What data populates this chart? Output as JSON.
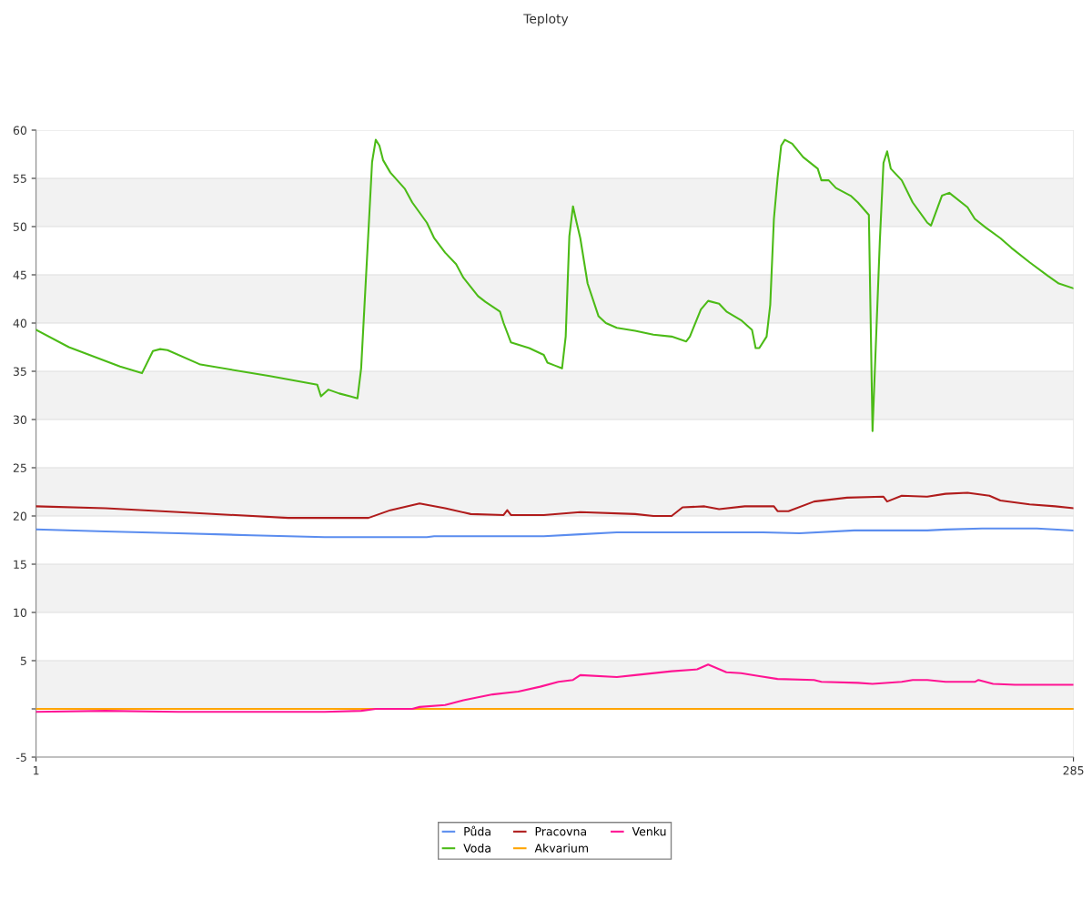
{
  "chart_data": {
    "type": "line",
    "title": "Teploty",
    "xlim": [
      1,
      285
    ],
    "xticks": [
      1,
      285
    ],
    "ylim": [
      -5,
      60
    ],
    "yticks": [
      -5,
      {
        "value": 0,
        "label": null
      },
      5,
      10,
      15,
      20,
      25,
      30,
      35,
      40,
      45,
      50,
      55,
      60
    ],
    "grid": true,
    "legend": "bottom",
    "marker": "none",
    "line_style": "solid",
    "bands": [
      {
        "axis": "y",
        "from": 0,
        "to": 5,
        "color": "#f2f2f2"
      },
      {
        "axis": "y",
        "from": 10,
        "to": 15,
        "color": "#f2f2f2"
      },
      {
        "axis": "y",
        "from": 20,
        "to": 25,
        "color": "#f2f2f2"
      },
      {
        "axis": "y",
        "from": 30,
        "to": 35,
        "color": "#f2f2f2"
      },
      {
        "axis": "y",
        "from": 40,
        "to": 45,
        "color": "#f2f2f2"
      },
      {
        "axis": "y",
        "from": 50,
        "to": 55,
        "color": "#f2f2f2"
      }
    ],
    "series": [
      {
        "name": "Půda",
        "color": "#5b8def",
        "x": [
          1,
          20,
          40,
          60,
          80,
          108,
          110,
          140,
          150,
          160,
          200,
          210,
          225,
          245,
          250,
          260,
          275,
          285
        ],
        "values": [
          18.6,
          18.4,
          18.2,
          18.0,
          17.8,
          17.8,
          17.9,
          17.9,
          18.1,
          18.3,
          18.3,
          18.2,
          18.5,
          18.5,
          18.6,
          18.7,
          18.7,
          18.5
        ]
      },
      {
        "name": "Voda",
        "color": "#4cbb17",
        "x": [
          1,
          10,
          24,
          30,
          33,
          35,
          37,
          46,
          65,
          78,
          79,
          81,
          84,
          87,
          89,
          90,
          91,
          92,
          93,
          94,
          95,
          96,
          98,
          102,
          104,
          108,
          110,
          113,
          116,
          118,
          122,
          124,
          128,
          129,
          131,
          136,
          140,
          141,
          143,
          145,
          146,
          147,
          148,
          149,
          150,
          152,
          155,
          157,
          160,
          165,
          170,
          175,
          179,
          180,
          183,
          185,
          188,
          190,
          194,
          197,
          198,
          199,
          201,
          202,
          203,
          204,
          205,
          206,
          208,
          211,
          215,
          216,
          218,
          220,
          224,
          226,
          229,
          230,
          232,
          233,
          234,
          235,
          238,
          241,
          245,
          246,
          249,
          251,
          256,
          258,
          261,
          265,
          268,
          273,
          278,
          281,
          285
        ],
        "values": [
          39.3,
          37.5,
          35.5,
          34.8,
          37.1,
          37.3,
          37.2,
          35.7,
          34.5,
          33.6,
          32.4,
          33.1,
          32.7,
          32.4,
          32.2,
          35.3,
          42.4,
          49.5,
          56.7,
          59.0,
          58.4,
          56.9,
          55.6,
          53.9,
          52.5,
          50.4,
          48.8,
          47.3,
          46.1,
          44.7,
          42.8,
          42.2,
          41.2,
          40.0,
          38.0,
          37.4,
          36.7,
          35.9,
          35.6,
          35.3,
          38.6,
          49.0,
          52.1,
          50.4,
          48.8,
          44.1,
          40.7,
          40.0,
          39.5,
          39.2,
          38.8,
          38.6,
          38.1,
          38.6,
          41.4,
          42.3,
          42.0,
          41.2,
          40.3,
          39.3,
          37.4,
          37.4,
          38.6,
          41.9,
          50.8,
          55.0,
          58.4,
          59.0,
          58.6,
          57.2,
          56.0,
          54.8,
          54.8,
          54.0,
          53.2,
          52.5,
          51.2,
          28.8,
          48.5,
          56.6,
          57.8,
          56.0,
          54.8,
          52.5,
          50.4,
          50.1,
          53.2,
          53.5,
          52.0,
          50.8,
          49.9,
          48.8,
          47.8,
          46.3,
          44.9,
          44.1,
          43.6
        ]
      },
      {
        "name": "Pracovna",
        "color": "#b01c1c",
        "x": [
          1,
          20,
          40,
          70,
          92,
          98,
          106,
          113,
          120,
          129,
          130,
          131,
          140,
          150,
          165,
          170,
          175,
          178,
          184,
          188,
          195,
          203,
          204,
          207,
          214,
          223,
          233,
          234,
          238,
          245,
          250,
          256,
          262,
          265,
          273,
          280,
          285
        ],
        "values": [
          21.0,
          20.8,
          20.4,
          19.8,
          19.8,
          20.6,
          21.3,
          20.8,
          20.2,
          20.1,
          20.6,
          20.1,
          20.1,
          20.4,
          20.2,
          20.0,
          20.0,
          20.9,
          21.0,
          20.7,
          21.0,
          21.0,
          20.5,
          20.5,
          21.5,
          21.9,
          22.0,
          21.5,
          22.1,
          22.0,
          22.3,
          22.4,
          22.1,
          21.6,
          21.2,
          21.0,
          20.8
        ]
      },
      {
        "name": "Akvarium",
        "color": "#ffa500",
        "x": [
          1,
          143,
          285
        ],
        "values": [
          0,
          0,
          0
        ]
      },
      {
        "name": "Venku",
        "color": "#ff1493",
        "x": [
          1,
          20,
          40,
          60,
          80,
          90,
          94,
          104,
          106,
          113,
          118,
          126,
          133,
          139,
          144,
          148,
          150,
          160,
          165,
          175,
          182,
          185,
          190,
          194,
          199,
          204,
          214,
          216,
          226,
          230,
          238,
          241,
          245,
          250,
          258,
          259,
          263,
          269,
          285
        ],
        "values": [
          -0.3,
          -0.2,
          -0.3,
          -0.3,
          -0.3,
          -0.2,
          0,
          0,
          0.2,
          0.4,
          0.9,
          1.5,
          1.8,
          2.3,
          2.8,
          3.0,
          3.5,
          3.3,
          3.5,
          3.9,
          4.1,
          4.6,
          3.8,
          3.7,
          3.4,
          3.1,
          3.0,
          2.8,
          2.7,
          2.6,
          2.8,
          3.0,
          3.0,
          2.8,
          2.8,
          3.0,
          2.6,
          2.5,
          2.5
        ]
      }
    ]
  }
}
